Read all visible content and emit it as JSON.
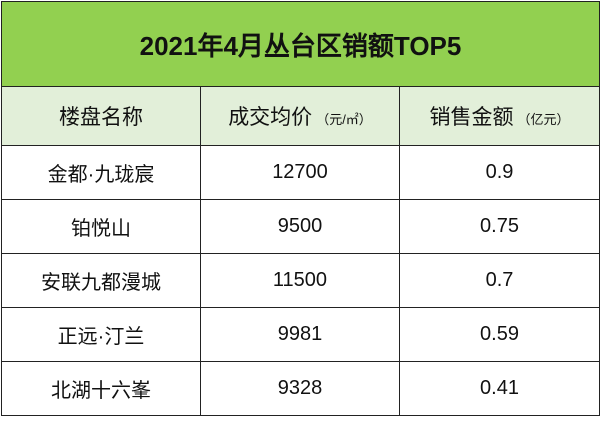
{
  "header": {
    "title": "2021年4月丛台区销额TOP5"
  },
  "table": {
    "columns": [
      {
        "text": "楼盘名称"
      },
      {
        "text": "成交均价",
        "unit": "（元/㎡）"
      },
      {
        "text": "销售金额",
        "unit": "（亿元）"
      }
    ],
    "rows": [
      [
        "金都·九珑宸",
        12700,
        0.9
      ],
      [
        "铂悦山",
        9500,
        0.75
      ],
      [
        "安联九都漫城",
        11500,
        0.7
      ],
      [
        "正远·汀兰",
        9981,
        0.59
      ],
      [
        "北湖十六峯",
        9328,
        0.41
      ]
    ]
  }
}
